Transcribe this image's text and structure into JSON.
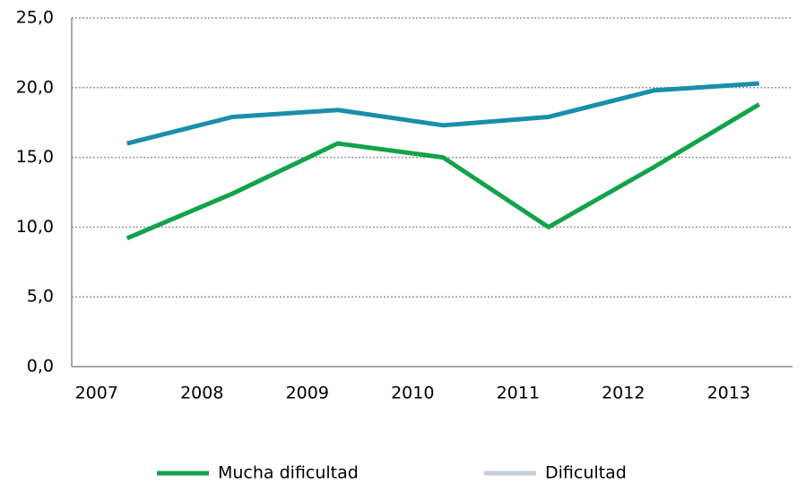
{
  "chart_data": {
    "type": "line",
    "categories": [
      "2007",
      "2008",
      "2009",
      "2010",
      "2011",
      "2012",
      "2013"
    ],
    "series": [
      {
        "name": "Mucha dificultad",
        "color": "#12a34a",
        "legend_color": "#12a34a",
        "values": [
          9.2,
          12.4,
          16.0,
          15.0,
          10.0,
          14.3,
          18.8
        ]
      },
      {
        "name": "Dificultad",
        "color": "#1a8eaa",
        "legend_color": "#c4cde0",
        "values": [
          16.0,
          17.9,
          18.4,
          17.3,
          17.9,
          19.8,
          20.3
        ]
      }
    ],
    "ylim": [
      0,
      25
    ],
    "yticks": [
      {
        "value": 0,
        "label": "0,0"
      },
      {
        "value": 5,
        "label": "5,0"
      },
      {
        "value": 10,
        "label": "10,0"
      },
      {
        "value": 15,
        "label": "15,0"
      },
      {
        "value": 20,
        "label": "20,0"
      },
      {
        "value": 25,
        "label": "25,0"
      }
    ],
    "grid": true
  }
}
